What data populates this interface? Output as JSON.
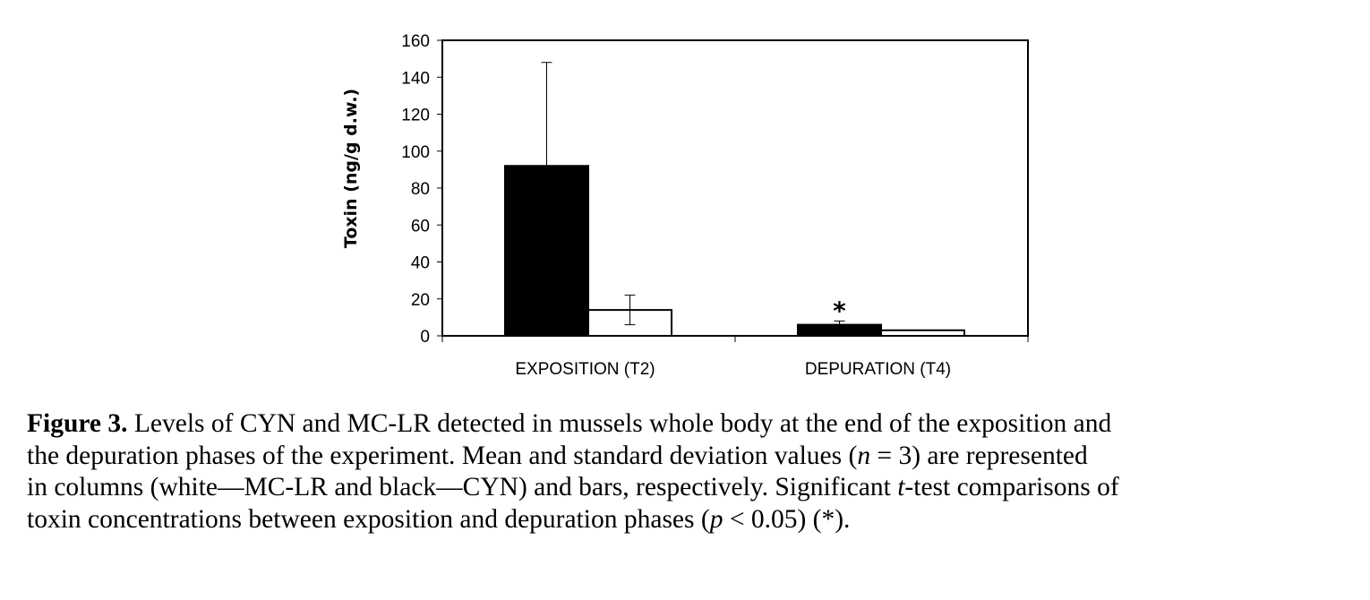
{
  "chart_data": {
    "type": "bar",
    "categories": [
      "EXPOSITION (T2)",
      "DEPURATION (T4)"
    ],
    "series": [
      {
        "fill": "#000000",
        "values": [
          92,
          6
        ],
        "errors": [
          56,
          2
        ]
      },
      {
        "fill": "#ffffff",
        "values": [
          14,
          3
        ],
        "errors": [
          8,
          0
        ]
      }
    ],
    "ylabel": "Toxin (ng/g d.w.)",
    "ylim": [
      0,
      160
    ],
    "yticks": [
      0,
      20,
      40,
      60,
      80,
      100,
      120,
      140,
      160
    ],
    "annotations": [
      {
        "text": "*",
        "category": 1,
        "series": 0
      }
    ],
    "grid": false,
    "legend": "none"
  },
  "caption": {
    "label": "Figure 3.",
    "line1": "Levels of CYN and MC-LR detected in mussels whole body at the end of the exposition and",
    "line2a": "the depuration phases of the experiment. Mean and standard deviation values (",
    "line2_n": "n",
    "line2b": " = 3) are represented",
    "line3a": "in columns (white—MC-LR and black—CYN) and bars, respectively. Significant ",
    "line3_t": "t",
    "line3b": "-test comparisons of",
    "line4a": "toxin concentrations between exposition and depuration phases (",
    "line4_p": "p",
    "line4b": " < 0.05) (*)."
  }
}
